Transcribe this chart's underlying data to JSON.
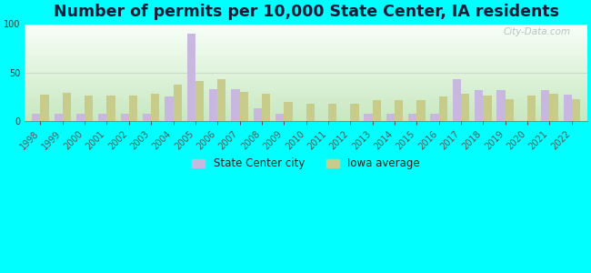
{
  "title": "Number of permits per 10,000 State Center, IA residents",
  "years": [
    1998,
    1999,
    2000,
    2001,
    2002,
    2003,
    2004,
    2005,
    2006,
    2007,
    2008,
    2009,
    2010,
    2011,
    2012,
    2013,
    2014,
    2015,
    2016,
    2017,
    2018,
    2019,
    2020,
    2021,
    2022
  ],
  "city_values": [
    8,
    8,
    8,
    8,
    8,
    8,
    25,
    90,
    33,
    33,
    13,
    8,
    0,
    0,
    0,
    8,
    8,
    8,
    8,
    43,
    32,
    32,
    0,
    32,
    27
  ],
  "iowa_values": [
    27,
    29,
    26,
    26,
    26,
    28,
    38,
    41,
    43,
    30,
    28,
    20,
    18,
    18,
    18,
    22,
    22,
    22,
    25,
    28,
    26,
    23,
    26,
    28,
    23
  ],
  "city_color": "#c8b8e0",
  "iowa_color": "#c8cc8a",
  "outer_bg": "#00ffff",
  "plot_bg_top": "#f8fff8",
  "plot_bg_bottom": "#c8e8c0",
  "ylim": [
    0,
    100
  ],
  "yticks": [
    0,
    50,
    100
  ],
  "bar_width": 0.38,
  "watermark": "City-Data.com",
  "legend_city": "State Center city",
  "legend_iowa": "Iowa average",
  "title_fontsize": 12.5,
  "tick_fontsize": 7,
  "grid_color": "#ccddcc"
}
